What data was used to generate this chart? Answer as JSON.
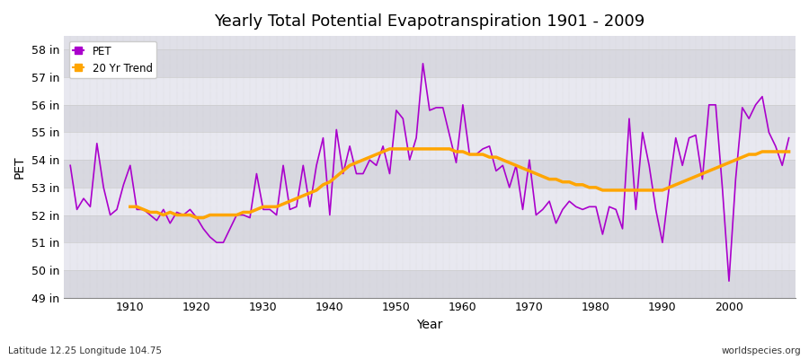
{
  "title": "Yearly Total Potential Evapotranspiration 1901 - 2009",
  "xlabel": "Year",
  "ylabel": "PET",
  "footnote_left": "Latitude 12.25 Longitude 104.75",
  "footnote_right": "worldspecies.org",
  "pet_color": "#aa00cc",
  "trend_color": "#FFA500",
  "figure_bg": "#ffffff",
  "plot_bg": "#e0e0e8",
  "band_color1": "#d8d8e0",
  "band_color2": "#e8e8f0",
  "grid_color": "#ffffff",
  "ylim": [
    49,
    58.5
  ],
  "yticks": [
    49,
    50,
    51,
    52,
    53,
    54,
    55,
    56,
    57,
    58
  ],
  "ytick_labels": [
    "49 in",
    "50 in",
    "51 in",
    "52 in",
    "53 in",
    "54 in",
    "55 in",
    "56 in",
    "57 in",
    "58 in"
  ],
  "years": [
    1901,
    1902,
    1903,
    1904,
    1905,
    1906,
    1907,
    1908,
    1909,
    1910,
    1911,
    1912,
    1913,
    1914,
    1915,
    1916,
    1917,
    1918,
    1919,
    1920,
    1921,
    1922,
    1923,
    1924,
    1925,
    1926,
    1927,
    1928,
    1929,
    1930,
    1931,
    1932,
    1933,
    1934,
    1935,
    1936,
    1937,
    1938,
    1939,
    1940,
    1941,
    1942,
    1943,
    1944,
    1945,
    1946,
    1947,
    1948,
    1949,
    1950,
    1951,
    1952,
    1953,
    1954,
    1955,
    1956,
    1957,
    1958,
    1959,
    1960,
    1961,
    1962,
    1963,
    1964,
    1965,
    1966,
    1967,
    1968,
    1969,
    1970,
    1971,
    1972,
    1973,
    1974,
    1975,
    1976,
    1977,
    1978,
    1979,
    1980,
    1981,
    1982,
    1983,
    1984,
    1985,
    1986,
    1987,
    1988,
    1989,
    1990,
    1991,
    1992,
    1993,
    1994,
    1995,
    1996,
    1997,
    1998,
    1999,
    2000,
    2001,
    2002,
    2003,
    2004,
    2005,
    2006,
    2007,
    2008,
    2009
  ],
  "pet_values": [
    53.8,
    52.2,
    52.6,
    52.3,
    54.6,
    53.0,
    52.0,
    52.2,
    53.1,
    53.8,
    52.2,
    52.2,
    52.0,
    51.8,
    52.2,
    51.7,
    52.1,
    52.0,
    52.2,
    51.9,
    51.5,
    51.2,
    51.0,
    51.0,
    51.5,
    52.0,
    52.0,
    51.9,
    53.5,
    52.2,
    52.2,
    52.0,
    53.8,
    52.2,
    52.3,
    53.8,
    52.3,
    53.8,
    54.8,
    52.0,
    55.1,
    53.5,
    54.5,
    53.5,
    53.5,
    54.0,
    53.8,
    54.5,
    53.5,
    55.8,
    55.5,
    54.0,
    54.8,
    57.5,
    55.8,
    55.9,
    55.9,
    54.9,
    53.9,
    56.0,
    54.2,
    54.2,
    54.4,
    54.5,
    53.6,
    53.8,
    53.0,
    53.8,
    52.2,
    54.0,
    52.0,
    52.2,
    52.5,
    51.7,
    52.2,
    52.5,
    52.3,
    52.2,
    52.3,
    52.3,
    51.3,
    52.3,
    52.2,
    51.5,
    55.5,
    52.2,
    55.0,
    53.8,
    52.2,
    51.0,
    53.0,
    54.8,
    53.8,
    54.8,
    54.9,
    53.3,
    56.0,
    56.0,
    53.0,
    49.6,
    53.3,
    55.9,
    55.5,
    56.0,
    56.3,
    55.0,
    54.5,
    53.8,
    54.8
  ],
  "trend_values": [
    null,
    null,
    null,
    null,
    null,
    null,
    null,
    null,
    null,
    52.3,
    52.3,
    52.2,
    52.1,
    52.1,
    52.0,
    52.1,
    52.0,
    52.0,
    52.0,
    51.9,
    51.9,
    52.0,
    52.0,
    52.0,
    52.0,
    52.0,
    52.1,
    52.1,
    52.2,
    52.3,
    52.3,
    52.3,
    52.4,
    52.5,
    52.6,
    52.7,
    52.8,
    52.9,
    53.1,
    53.2,
    53.4,
    53.6,
    53.8,
    53.9,
    54.0,
    54.1,
    54.2,
    54.3,
    54.4,
    54.4,
    54.4,
    54.4,
    54.4,
    54.4,
    54.4,
    54.4,
    54.4,
    54.4,
    54.3,
    54.3,
    54.2,
    54.2,
    54.2,
    54.1,
    54.1,
    54.0,
    53.9,
    53.8,
    53.7,
    53.6,
    53.5,
    53.4,
    53.3,
    53.3,
    53.2,
    53.2,
    53.1,
    53.1,
    53.0,
    53.0,
    52.9,
    52.9,
    52.9,
    52.9,
    52.9,
    52.9,
    52.9,
    52.9,
    52.9,
    52.9,
    53.0,
    53.1,
    53.2,
    53.3,
    53.4,
    53.5,
    53.6,
    53.7,
    53.8,
    53.9,
    54.0,
    54.1,
    54.2,
    54.2,
    54.3,
    54.3,
    54.3,
    54.3,
    54.3
  ]
}
